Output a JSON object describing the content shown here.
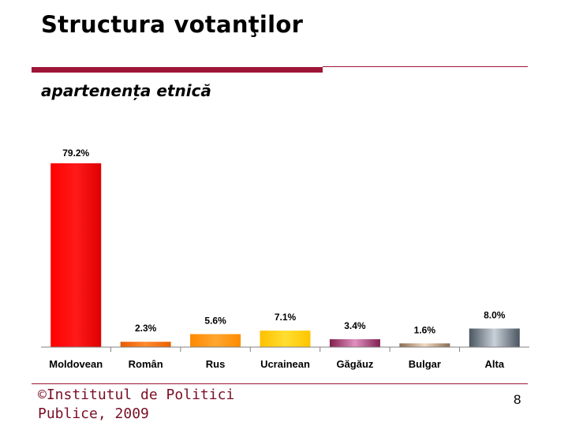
{
  "slide": {
    "title": "Structura votanţilor",
    "subtitle": "apartenența etnică",
    "footer": "©Institutul de Politici Publice, 2009",
    "page_number": "8"
  },
  "chart_data": {
    "type": "bar",
    "title": "",
    "xlabel": "",
    "ylabel": "",
    "categories": [
      "Moldovean",
      "Român",
      "Rus",
      "Ucrainean",
      "Găgăuz",
      "Bulgar",
      "Alta"
    ],
    "values": [
      79.2,
      2.3,
      5.6,
      7.1,
      3.4,
      1.6,
      8.0
    ],
    "value_labels": [
      "79.2%",
      "2.3%",
      "5.6%",
      "7.1%",
      "3.4%",
      "1.6%",
      "8.0%"
    ],
    "ylim": [
      0,
      80
    ],
    "grid": false,
    "legend": "none",
    "colors": [
      "#ff0000",
      "#f07010",
      "#ff9900",
      "#ffcc00",
      "#a03070",
      "#c0a080",
      "#7a8590"
    ]
  }
}
